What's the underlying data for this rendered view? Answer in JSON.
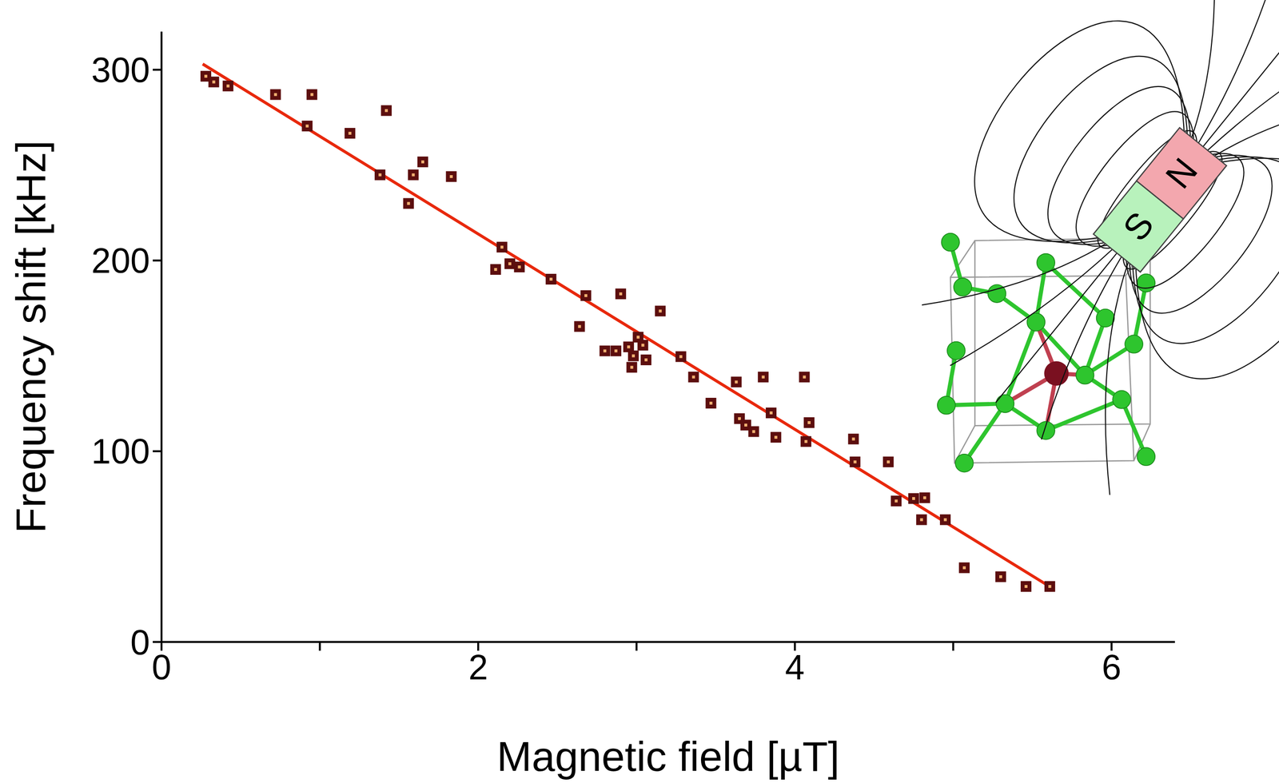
{
  "chart_data": {
    "type": "scatter",
    "x_label": "Magnetic field [µT]",
    "y_label": "Frequency shift [kHz]",
    "xlim": [
      0,
      6.4
    ],
    "ylim": [
      0,
      320
    ],
    "xticks": [
      0,
      2,
      4,
      6
    ],
    "xticks_minor": [
      1,
      3,
      5
    ],
    "yticks": [
      0,
      100,
      200,
      300
    ],
    "grid": false,
    "annotations": [
      "S",
      "N"
    ],
    "series": [
      {
        "type": "scatter",
        "color": "#5c0e0e",
        "marker": "square",
        "x": [
          0.28,
          0.33,
          0.42,
          0.72,
          0.95,
          0.92,
          1.19,
          1.42,
          1.38,
          1.56,
          1.59,
          1.65,
          1.83,
          2.15,
          2.11,
          2.2,
          2.26,
          2.46,
          2.68,
          2.64,
          2.9,
          2.8,
          2.87,
          2.95,
          3.01,
          3.04,
          2.98,
          2.97,
          3.06,
          3.15,
          3.28,
          3.36,
          3.47,
          3.63,
          3.65,
          3.69,
          3.74,
          3.8,
          3.85,
          3.88,
          4.06,
          4.07,
          4.09,
          4.37,
          4.38,
          4.59,
          4.64,
          4.75,
          4.82,
          4.8,
          4.95,
          5.07,
          5.3,
          5.46,
          5.61
        ],
        "values": [
          296.6,
          293.6,
          291.5,
          287,
          287,
          270.5,
          266.7,
          278.6,
          244.9,
          229.9,
          244.9,
          251.7,
          244,
          207,
          195.3,
          198.3,
          196.6,
          190.2,
          181.6,
          165.4,
          182.5,
          152.6,
          152.6,
          154.7,
          159.8,
          155.6,
          150,
          144,
          147.9,
          173.5,
          149.6,
          138.9,
          125.2,
          136.3,
          117.1,
          113.7,
          110.3,
          138.9,
          120.1,
          107.3,
          138.9,
          105.1,
          115,
          106.4,
          94.4,
          94.4,
          73.9,
          75.2,
          75.6,
          64.1,
          64.1,
          38.9,
          34.2,
          29.1,
          29.1
        ]
      },
      {
        "type": "line",
        "color": "#e8280c",
        "line_style": "solid",
        "x": [
          0.26,
          5.61
        ],
        "values": [
          303,
          29
        ]
      }
    ]
  }
}
